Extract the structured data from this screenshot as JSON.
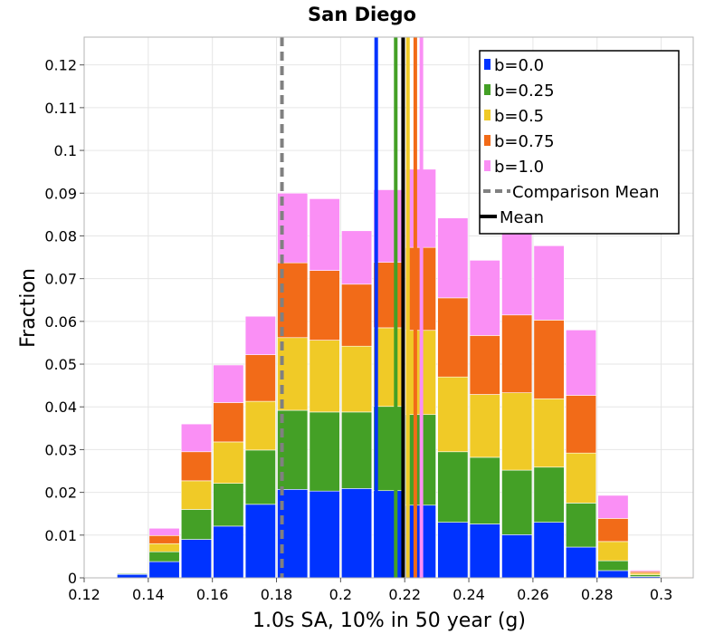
{
  "chart_data": {
    "type": "bar",
    "title": "San Diego",
    "xlabel": "1.0s SA, 10% in 50 year (g)",
    "ylabel": "Fraction",
    "xlim": [
      0.12,
      0.31
    ],
    "ylim": [
      0,
      0.1265
    ],
    "bin_width": 0.01,
    "grid": true,
    "stacked": true,
    "x_ticks": [
      "0.12",
      "0.14",
      "0.16",
      "0.18",
      "0.2",
      "0.22",
      "0.24",
      "0.26",
      "0.28",
      "0.3"
    ],
    "y_ticks": [
      "0",
      "0.01",
      "0.02",
      "0.03",
      "0.04",
      "0.05",
      "0.06",
      "0.07",
      "0.08",
      "0.09",
      "0.1",
      "0.11",
      "0.12"
    ],
    "bin_centers": [
      0.135,
      0.145,
      0.155,
      0.165,
      0.175,
      0.185,
      0.195,
      0.205,
      0.215,
      0.225,
      0.235,
      0.245,
      0.255,
      0.265,
      0.275,
      0.285,
      0.295,
      0.305
    ],
    "series": [
      {
        "name": "b=0.0",
        "color": "#0033FF",
        "values": [
          0.0008,
          0.0038,
          0.009,
          0.0121,
          0.0172,
          0.0207,
          0.0203,
          0.0209,
          0.0204,
          0.017,
          0.013,
          0.0126,
          0.0101,
          0.013,
          0.0072,
          0.0017,
          0.0003,
          0.0001
        ]
      },
      {
        "name": "b=0.25",
        "color": "#44A026",
        "values": [
          0.0002,
          0.0023,
          0.007,
          0.01,
          0.0127,
          0.0185,
          0.0185,
          0.0179,
          0.0197,
          0.0212,
          0.0165,
          0.0156,
          0.0151,
          0.0129,
          0.0103,
          0.0023,
          0.0004,
          0.0001
        ]
      },
      {
        "name": "b=0.5",
        "color": "#F0CA27",
        "values": [
          0.0001,
          0.0019,
          0.0067,
          0.0097,
          0.0114,
          0.017,
          0.0168,
          0.0154,
          0.0184,
          0.0197,
          0.0175,
          0.0147,
          0.0181,
          0.016,
          0.0117,
          0.0045,
          0.0004,
          0.0001
        ]
      },
      {
        "name": "b=0.75",
        "color": "#F26B18",
        "values": [
          0.0001,
          0.0019,
          0.0068,
          0.0092,
          0.0109,
          0.0175,
          0.0163,
          0.0145,
          0.0153,
          0.0194,
          0.0185,
          0.0138,
          0.0182,
          0.0184,
          0.0135,
          0.0054,
          0.0004,
          0.0001
        ]
      },
      {
        "name": "b=1.0",
        "color": "#FA8FF5",
        "values": [
          0.0001,
          0.0017,
          0.0065,
          0.0088,
          0.009,
          0.0163,
          0.0168,
          0.0125,
          0.017,
          0.0183,
          0.0187,
          0.0176,
          0.0208,
          0.0174,
          0.0153,
          0.0054,
          0.0003,
          0.0001
        ]
      }
    ],
    "vertical_lines": [
      {
        "series": "b=0.0",
        "x": 0.2111,
        "color": "#0033FF",
        "style": "solid"
      },
      {
        "series": "b=0.25",
        "x": 0.2172,
        "color": "#44A026",
        "style": "solid"
      },
      {
        "series": "b=0.5",
        "x": 0.221,
        "color": "#F0CA27",
        "style": "solid"
      },
      {
        "series": "b=0.75",
        "x": 0.2233,
        "color": "#F26B18",
        "style": "solid"
      },
      {
        "series": "b=1.0",
        "x": 0.2252,
        "color": "#FA8FF5",
        "style": "solid"
      },
      {
        "series": "Comparison Mean",
        "x": 0.1817,
        "color": "#808080",
        "style": "dashed"
      },
      {
        "series": "Mean",
        "x": 0.2195,
        "color": "#000000",
        "style": "solid"
      }
    ],
    "legend": {
      "position": "top-right",
      "items": [
        {
          "label": "b=0.0",
          "color": "#0033FF",
          "kind": "square"
        },
        {
          "label": "b=0.25",
          "color": "#44A026",
          "kind": "square"
        },
        {
          "label": "b=0.5",
          "color": "#F0CA27",
          "kind": "square"
        },
        {
          "label": "b=0.75",
          "color": "#F26B18",
          "kind": "square"
        },
        {
          "label": "b=1.0",
          "color": "#FA8FF5",
          "kind": "square"
        },
        {
          "label": "Comparison Mean",
          "color": "#808080",
          "kind": "dashed-line"
        },
        {
          "label": "Mean",
          "color": "#000000",
          "kind": "solid-line"
        }
      ]
    }
  }
}
